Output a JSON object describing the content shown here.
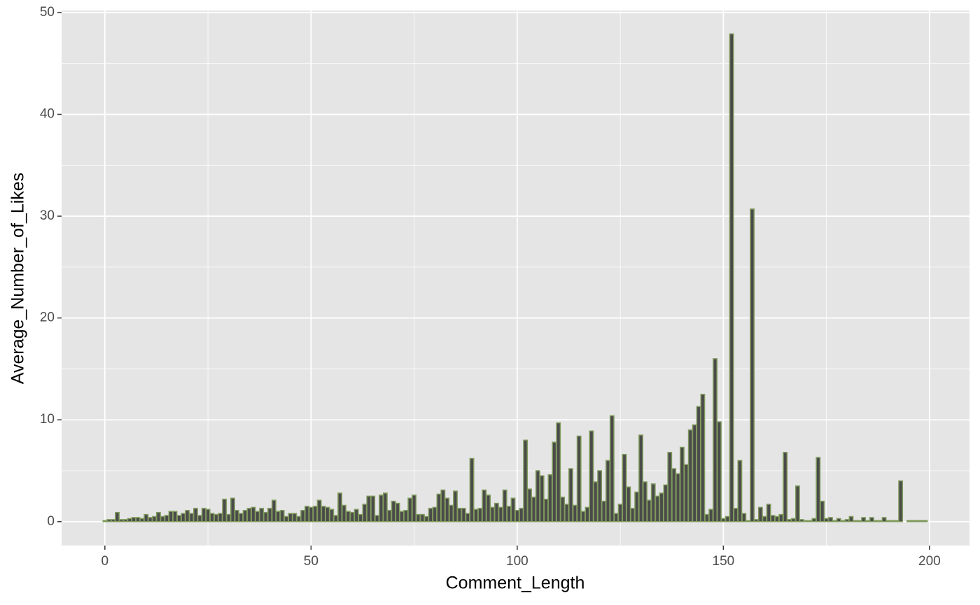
{
  "chart_data": {
    "type": "bar",
    "x_label": "Comment_Length",
    "y_label": "Average_Number_of_Likes",
    "x": [
      0,
      1,
      2,
      3,
      4,
      5,
      6,
      7,
      8,
      9,
      10,
      11,
      12,
      13,
      14,
      15,
      16,
      17,
      18,
      19,
      20,
      21,
      22,
      23,
      24,
      25,
      26,
      27,
      28,
      29,
      30,
      31,
      32,
      33,
      34,
      35,
      36,
      37,
      38,
      39,
      40,
      41,
      42,
      43,
      44,
      45,
      46,
      47,
      48,
      49,
      50,
      51,
      52,
      53,
      54,
      55,
      56,
      57,
      58,
      59,
      60,
      61,
      62,
      63,
      64,
      65,
      66,
      67,
      68,
      69,
      70,
      71,
      72,
      73,
      74,
      75,
      76,
      77,
      78,
      79,
      80,
      81,
      82,
      83,
      84,
      85,
      86,
      87,
      88,
      89,
      90,
      91,
      92,
      93,
      94,
      95,
      96,
      97,
      98,
      99,
      100,
      101,
      102,
      103,
      104,
      105,
      106,
      107,
      108,
      109,
      110,
      111,
      112,
      113,
      114,
      115,
      116,
      117,
      118,
      119,
      120,
      121,
      122,
      123,
      124,
      125,
      126,
      127,
      128,
      129,
      130,
      131,
      132,
      133,
      134,
      135,
      136,
      137,
      138,
      139,
      140,
      141,
      142,
      143,
      144,
      145,
      146,
      147,
      148,
      149,
      150,
      151,
      152,
      153,
      154,
      155,
      156,
      157,
      158,
      159,
      160,
      161,
      162,
      163,
      164,
      165,
      166,
      167,
      168,
      169,
      170,
      171,
      172,
      173,
      174,
      175,
      176,
      177,
      178,
      179,
      180,
      181,
      182,
      183,
      184,
      185,
      186,
      187,
      188,
      189,
      190,
      191,
      192,
      193,
      195,
      196,
      197,
      198,
      199
    ],
    "values": [
      0.1,
      0.2,
      0.2,
      0.9,
      0.2,
      0.2,
      0.3,
      0.4,
      0.4,
      0.3,
      0.7,
      0.4,
      0.5,
      0.9,
      0.5,
      0.6,
      1.0,
      1.0,
      0.6,
      0.8,
      1.1,
      0.8,
      1.3,
      0.6,
      1.3,
      1.2,
      0.8,
      0.7,
      0.8,
      2.2,
      0.7,
      2.3,
      1.1,
      0.8,
      1.1,
      1.3,
      1.4,
      1.0,
      1.3,
      0.9,
      1.3,
      2.1,
      1.0,
      1.1,
      0.5,
      0.8,
      0.8,
      0.5,
      1.1,
      1.5,
      1.4,
      1.5,
      2.1,
      1.5,
      1.4,
      1.2,
      0.6,
      2.8,
      1.6,
      1.0,
      0.9,
      1.2,
      0.7,
      1.7,
      2.5,
      2.5,
      0.6,
      2.6,
      2.8,
      1.1,
      2.0,
      1.8,
      1.0,
      1.1,
      2.3,
      2.6,
      0.7,
      0.7,
      0.5,
      1.3,
      1.4,
      2.7,
      3.1,
      2.3,
      1.6,
      3.0,
      1.3,
      1.3,
      0.8,
      6.2,
      1.2,
      1.3,
      3.1,
      2.6,
      1.4,
      1.8,
      1.4,
      3.1,
      1.5,
      2.3,
      1.1,
      1.3,
      8.0,
      3.2,
      2.4,
      5.0,
      4.5,
      2.2,
      4.6,
      7.8,
      9.7,
      2.4,
      1.7,
      5.2,
      1.6,
      8.4,
      1.0,
      1.4,
      8.9,
      3.9,
      5.0,
      2.0,
      6.0,
      10.4,
      0.8,
      1.7,
      6.6,
      3.4,
      1.3,
      2.9,
      8.5,
      3.9,
      2.1,
      3.7,
      2.5,
      2.8,
      3.6,
      6.8,
      5.2,
      4.7,
      7.3,
      5.6,
      9.0,
      9.5,
      11.3,
      12.5,
      0.7,
      1.2,
      16.0,
      9.8,
      0.3,
      0.5,
      47.9,
      1.3,
      6.0,
      0.8,
      0.1,
      30.7,
      0.2,
      1.4,
      0.5,
      1.7,
      0.6,
      0.5,
      0.7,
      6.8,
      0.2,
      0.3,
      3.5,
      0.2,
      0.1,
      0.1,
      0.3,
      6.3,
      2.0,
      0.3,
      0.4,
      0.1,
      0.3,
      0.1,
      0.2,
      0.5,
      0.1,
      0.1,
      0.4,
      0.1,
      0.4,
      0.1,
      0.1,
      0.4,
      0.1,
      0.1,
      0.1,
      4.0,
      0.1,
      0.1,
      0.1,
      0.1,
      0.1
    ],
    "fill": "#4a4a4a",
    "edge_color": "#7f9a5c",
    "xlim": [
      -10.5,
      209.7
    ],
    "xticks": [
      0,
      50,
      100,
      150,
      200
    ],
    "ylim": [
      -2.35,
      50.2
    ],
    "yticks": [
      0,
      10,
      20,
      30,
      40,
      50
    ],
    "grid": true
  }
}
